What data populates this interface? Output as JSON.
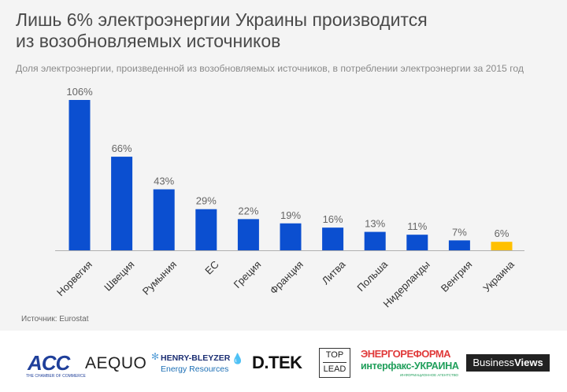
{
  "chart_data": {
    "type": "bar",
    "title": "Лишь 6% электроэнергии Украины производится из возобновляемых источников",
    "subtitle": "Доля электроэнергии, произведенной из возобновляемых источников, в потреблении электроэнергии за 2015 год",
    "categories": [
      "Норвегия",
      "Швеция",
      "Румыния",
      "ЕС",
      "Греция",
      "Франция",
      "Литва",
      "Польша",
      "Нидерланды",
      "Венгрия",
      "Украина"
    ],
    "values": [
      106,
      66,
      43,
      29,
      22,
      19,
      16,
      13,
      11,
      7,
      6
    ],
    "value_labels": [
      "106%",
      "66%",
      "43%",
      "29%",
      "22%",
      "19%",
      "16%",
      "13%",
      "11%",
      "7%",
      "6%"
    ],
    "highlight_category": "Украина",
    "colors": {
      "bar": "#0b4fd0",
      "highlight": "#ffc000",
      "label": "#666666",
      "axis": "#b0b0b0"
    },
    "ylim": [
      0,
      110
    ],
    "grid": false,
    "legend": "none"
  },
  "source": "Источник: Eurostat",
  "logos": {
    "acc": {
      "name": "ACC",
      "sub": "THE CHAMBER OF COMMERCE"
    },
    "aequo": "AEQUO",
    "henry_bleyzer": {
      "line1": "HENRY-BLEYZER",
      "line2": "Energy Resources"
    },
    "dtek": "D.TEK",
    "toplead": {
      "line1": "TOP",
      "line2": "LEAD"
    },
    "energoreforma": "ЭНЕРГОРЕФОРМА",
    "interfax": {
      "name": "интерфакс-УКРАИНА",
      "note": "ИНФОРМАЦИОННОЕ АГЕНТСТВО"
    },
    "business_views": {
      "part1": "Business",
      "part2": "Views"
    }
  }
}
